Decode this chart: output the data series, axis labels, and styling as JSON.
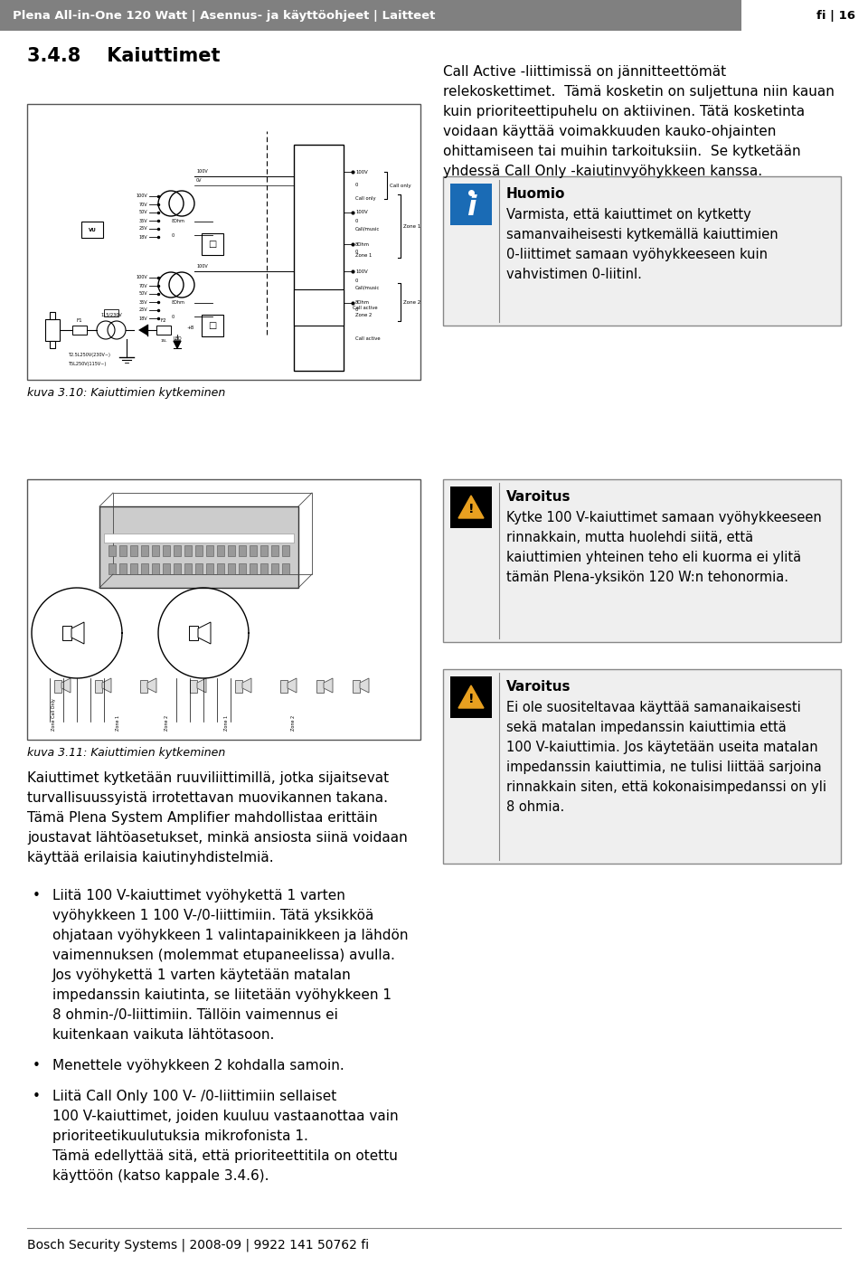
{
  "header_bg": "#808080",
  "header_text_left": "Plena All-in-One 120 Watt | Asennus- ja käyttöohjeet | Laitteet",
  "header_text_right": "fi | 16",
  "header_right_bg": "#ffffff",
  "section_title": "3.4.8    Kaiuttimet",
  "body_bg": "#ffffff",
  "footer_text": "Bosch Security Systems | 2008-09 | 9922 141 50762 fi",
  "fig_caption1": "kuva 3.10: Kaiuttimien kytkeminen",
  "fig_caption2": "kuva 3.11: Kaiuttimien kytkeminen",
  "para1_line1": "Call Active -liittimissä on jännitteettömät",
  "para1_line2": "relekoskettimet.  Tämä kosketin on suljettuna niin kauan",
  "para1_line3": "kuin prioriteettipuhelu on aktiivinen. Tätä kosketinta",
  "para1_line4": "voidaan käyttää voimakkuuden kauko-ohjainten",
  "para1_line5": "ohittamiseen tai muihin tarkoituksiin.  Se kytketään",
  "para1_line6": "yhdessä Call Only -kaiutinvyöhykkeen kanssa.",
  "note_title": "Huomio",
  "note_text": "Varmista, että kaiuttimet on kytketty\nsamanvaiheisesti kytkemällä kaiuttimien\n0-liittimet samaan vyöhykkeeseen kuin\nvahvistimen 0-liitinl.",
  "warning1_title": "Varoitus",
  "warning1_text": "Kytke 100 V-kaiuttimet samaan vyöhykkeeseen\nrinnakkain, mutta huolehdi siitä, että\nkaiuttimien yhteinen teho eli kuorma ei ylitä\ntämän Plena-yksikön 120 W:n tehonormia.",
  "warning2_title": "Varoitus",
  "warning2_text": "Ei ole suositeltavaa käyttää samanaikaisesti\nsekä matalan impedanssin kaiuttimia että\n100 V-kaiuttimia. Jos käytetään useita matalan\nimpedanssin kaiuttimia, ne tulisi liittää sarjoina\nrinnakkain siten, että kokonaisimpedanssi on yli\n8 ohmia.",
  "body_text_line1": "Kaiuttimet kytketään ruuviliittimillä, jotka sijaitsevat",
  "body_text_line2": "turvallisuussyistä irrotettavan muovikannen takana.",
  "body_text_line3": "Tämä Plena System Amplifier mahdollistaa erittäin",
  "body_text_line4": "joustavat lähtöasetukset, minkä ansiosta siinä voidaan",
  "body_text_line5": "käyttää erilaisia kaiutinyhdistelmiä.",
  "bullet1_lines": [
    "Liitä 100 V-kaiuttimet vyöhykettä 1 varten",
    "vyöhykkeen 1 100 V-/0-liittimiin. Tätä yksikköä",
    "ohjataan vyöhykkeen 1 valintapainikkeen ja lähdön",
    "vaimennuksen (molemmat etupaneelissa) avulla.",
    "Jos vyöhykettä 1 varten käytetään matalan",
    "impedanssin kaiutinta, se liitetään vyöhykkeen 1",
    "8 ohmin-/0-liittimiin. Tällöin vaimennus ei",
    "kuitenkaan vaikuta lähtötasoon."
  ],
  "bullet2_lines": [
    "Menettele vyöhykkeen 2 kohdalla samoin."
  ],
  "bullet3_lines": [
    "Liitä Call Only 100 V- /0-liittimiin sellaiset",
    "100 V-kaiuttimet, joiden kuuluu vastaanottaa vain",
    "prioriteetikuulutuksia mikrofonista 1.",
    "Tämä edellyttää sitä, että prioriteettitila on otettu",
    "käyttöön (katso kappale 3.4.6)."
  ],
  "note_icon_color": "#1a6bb5",
  "warning_icon_color": "#e8a020",
  "box_border_color": "#888888",
  "box_bg_color": "#efefef",
  "warn_icon_bg": "#000000"
}
